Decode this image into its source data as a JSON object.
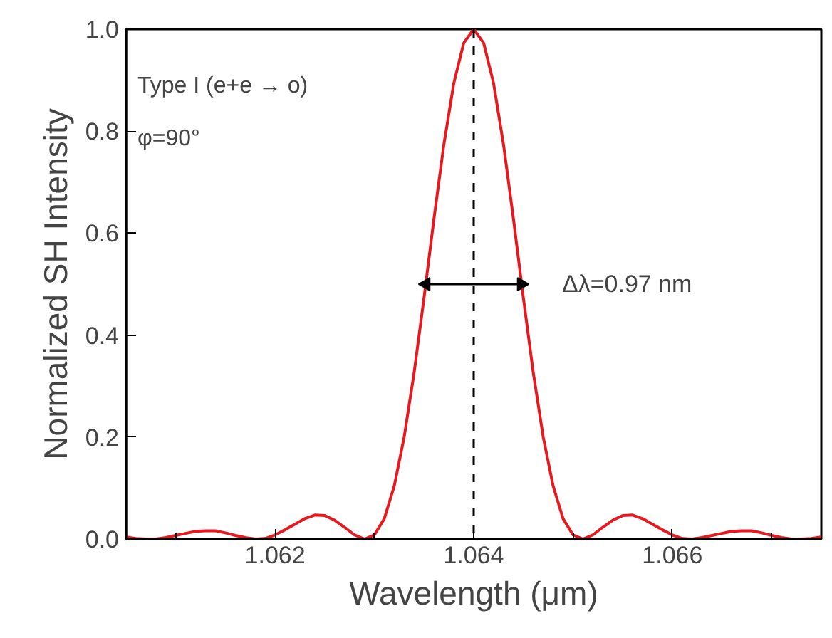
{
  "chart_data": {
    "type": "line",
    "xlabel": "Wavelength (μm)",
    "ylabel": "Normalized SH Intensity",
    "xlim": [
      1.0605,
      1.0675
    ],
    "ylim": [
      0,
      1.0
    ],
    "xticks": [
      {
        "value": 1.061,
        "label": null
      },
      1.062,
      {
        "value": 1.063,
        "label": null
      },
      1.064,
      {
        "value": 1.065,
        "label": null
      },
      1.066,
      {
        "value": 1.067,
        "label": null
      }
    ],
    "yticks": [
      {
        "value": 0,
        "label": "0.0"
      },
      0.2,
      0.4,
      0.6,
      0.8,
      {
        "value": 1,
        "label": "1.0"
      }
    ],
    "x": [
      1.0605,
      1.0606,
      1.0607,
      1.0608,
      1.0609,
      1.061,
      1.0611,
      1.0612,
      1.0613,
      1.0614,
      1.0615,
      1.0616,
      1.0617,
      1.0618,
      1.0619,
      1.062,
      1.0621,
      1.0622,
      1.0623,
      1.0624,
      1.0625,
      1.0626,
      1.0627,
      1.0628,
      1.0629,
      1.063,
      1.0631,
      1.0632,
      1.0633,
      1.0634,
      1.0635,
      1.0636,
      1.0637,
      1.0638,
      1.0639,
      1.064,
      1.0641,
      1.0642,
      1.0643,
      1.0644,
      1.0645,
      1.0646,
      1.0647,
      1.0648,
      1.0649,
      1.065,
      1.0651,
      1.0652,
      1.0653,
      1.0654,
      1.0655,
      1.0656,
      1.0657,
      1.0658,
      1.0659,
      1.066,
      1.0661,
      1.0662,
      1.0663,
      1.0664,
      1.0665,
      1.0666,
      1.0667,
      1.0668,
      1.0669,
      1.067,
      1.0671,
      1.0672,
      1.0673,
      1.0674,
      1.0675
    ],
    "series": [
      {
        "color": "#e8191e",
        "values": [
          0.004,
          0.001,
          0.0,
          0.0,
          0.003,
          0.007,
          0.011,
          0.015,
          0.016,
          0.016,
          0.012,
          0.007,
          0.003,
          0.0,
          0.001,
          0.008,
          0.018,
          0.029,
          0.04,
          0.047,
          0.046,
          0.037,
          0.023,
          0.008,
          0.0,
          0.008,
          0.04,
          0.104,
          0.2,
          0.326,
          0.473,
          0.628,
          0.774,
          0.894,
          0.973,
          1.0,
          0.973,
          0.894,
          0.774,
          0.628,
          0.473,
          0.326,
          0.2,
          0.104,
          0.04,
          0.008,
          0.0,
          0.008,
          0.023,
          0.037,
          0.046,
          0.047,
          0.04,
          0.029,
          0.018,
          0.008,
          0.001,
          0.0,
          0.003,
          0.007,
          0.011,
          0.015,
          0.016,
          0.016,
          0.012,
          0.007,
          0.003,
          0.0,
          0.0,
          0.001,
          0.004
        ]
      },
      {
        "type": "line",
        "color": "#000000",
        "x": [
          1.06352,
          1.06448
        ],
        "values": [
          0.5,
          0.5
        ],
        "marker": "triangle"
      }
    ],
    "ref_lines": [
      {
        "axis": "x",
        "value": 1.064,
        "color": "#000000",
        "line_style": "dashed"
      }
    ],
    "annotations": [
      "Type I (e+e → o)",
      "φ=90°",
      "Δλ=0.97 nm"
    ],
    "grid": false
  }
}
